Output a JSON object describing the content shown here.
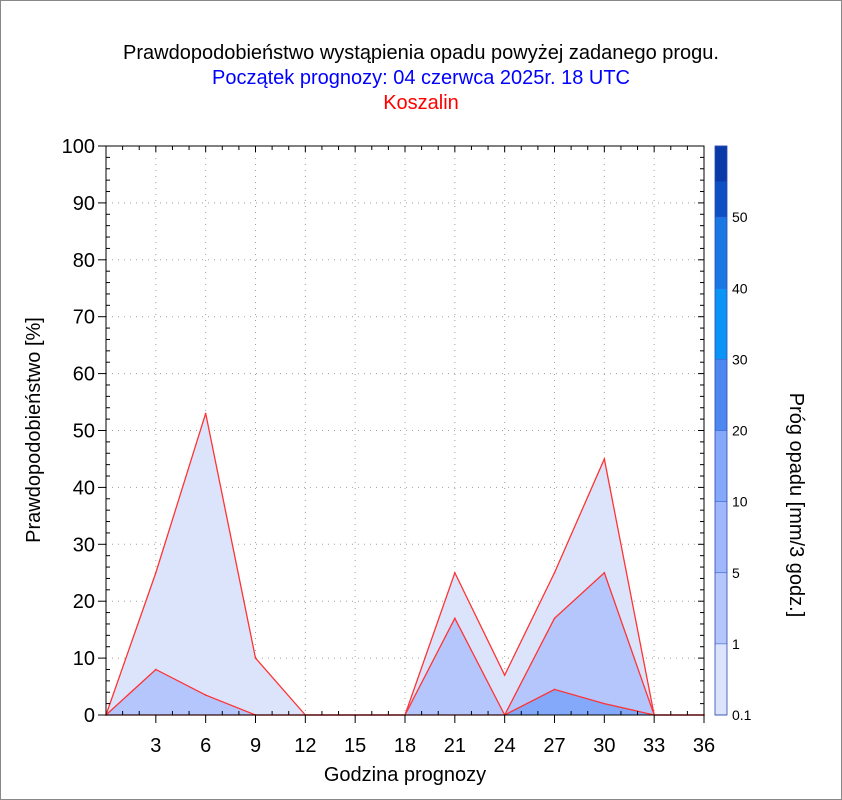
{
  "chart_data": {
    "type": "area",
    "title": "Prawdopodobieństwo wystąpienia opadu powyżej zadanego progu.",
    "subtitle": "Początek prognozy: 04 czerwca 2025r. 18 UTC",
    "location": "Koszalin",
    "xlabel": "Godzina prognozy",
    "ylabel": "Prawdopodobieństwo [%]",
    "colorbar_label": "Próg opadu [mm/3 godz.]",
    "xlim": [
      0,
      36
    ],
    "ylim": [
      0,
      100
    ],
    "xticks": [
      3,
      6,
      9,
      12,
      15,
      18,
      21,
      24,
      27,
      30,
      33,
      36
    ],
    "yticks": [
      0,
      10,
      20,
      30,
      40,
      50,
      60,
      70,
      80,
      90,
      100
    ],
    "x": [
      0,
      3,
      6,
      9,
      12,
      15,
      18,
      21,
      24,
      27,
      30,
      33,
      36
    ],
    "series": [
      {
        "threshold": "0.1",
        "color": "#dce4fb",
        "values": [
          0,
          25,
          53,
          10,
          0,
          0,
          0,
          25,
          7,
          25,
          45,
          0,
          0
        ]
      },
      {
        "threshold": "1",
        "color": "#b4c6fb",
        "values": [
          0,
          8,
          3.5,
          0,
          0,
          0,
          0,
          17,
          0,
          17,
          25,
          0,
          0
        ]
      },
      {
        "threshold": "5",
        "color": "#84a8fa",
        "values": [
          0,
          0,
          0,
          0,
          0,
          0,
          0,
          0,
          0,
          4.5,
          2,
          0,
          0
        ]
      }
    ],
    "colorbar": {
      "labels": [
        "0.1",
        "1",
        "5",
        "10",
        "20",
        "30",
        "40",
        "50"
      ],
      "colors": [
        "#dce4fb",
        "#b4c6fb",
        "#a0b8fb",
        "#84a8fa",
        "#4c88f0",
        "#0a94f5",
        "#1a78e4",
        "#1565d8",
        "#0f4fc4",
        "#0a3aa8"
      ]
    },
    "colors": {
      "title": "#000000",
      "subtitle": "#0000ff",
      "location": "#ff0000",
      "series_line": "#ff3333"
    }
  }
}
